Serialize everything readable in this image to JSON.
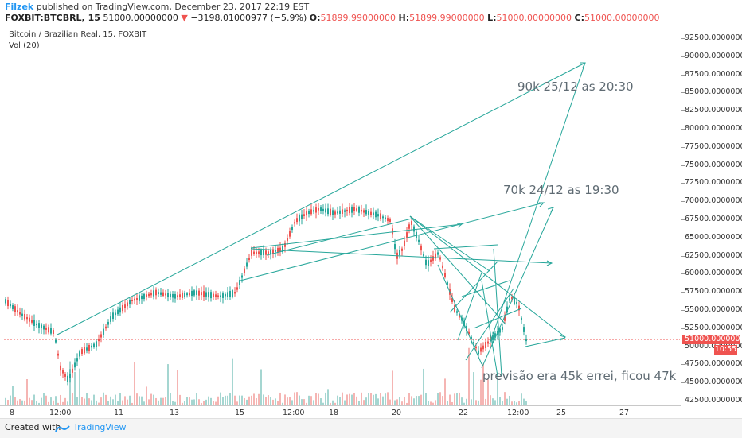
{
  "header": {
    "author": "Filzek",
    "published": "published on TradingView.com, December 23, 2017 22:19 EST"
  },
  "ticker": {
    "symbol": "FOXBIT:BTCBRL, 15",
    "last": "51000.00000000",
    "arrow": "▼",
    "change": "−3198.01000977 (−5.9%)",
    "o_label": "O:",
    "o": "51899.99000000",
    "h_label": "H:",
    "h": "51899.99000000",
    "l_label": "L:",
    "l": "51000.00000000",
    "c_label": "C:",
    "c": "51000.00000000"
  },
  "legend": {
    "title": "Bitcoin / Brazilian Real, 15, FOXBIT",
    "volume": "Vol (20)"
  },
  "price_axis": [
    "92500.00000000",
    "90000.00000000",
    "87500.00000000",
    "85000.00000000",
    "82500.00000000",
    "80000.00000000",
    "77500.00000000",
    "75000.00000000",
    "72500.00000000",
    "70000.00000000",
    "67500.00000000",
    "65000.00000000",
    "62500.00000000",
    "60000.00000000",
    "57500.00000000",
    "55000.00000000",
    "52500.00000000",
    "50000.00000000",
    "47500.00000000",
    "45000.00000000",
    "42500.00000000"
  ],
  "time_axis": [
    "8",
    "12:00",
    "11",
    "13",
    "15",
    "12:00",
    "18",
    "20",
    "22",
    "12:00",
    "25",
    "27"
  ],
  "current_price": "51000.00000000",
  "countdown": "10:55",
  "annotations": {
    "a90k": "90k 25/12 as 20:30",
    "a70k": "70k 24/12 as 19:30",
    "previsao": "previsão era 45k errei, ficou 47k"
  },
  "footer": {
    "created": "Created with",
    "brand": "TradingView"
  },
  "colors": {
    "up": "#26a69a",
    "down": "#ef5350",
    "drawing": "#26a69a",
    "accent": "#2196f3"
  }
}
